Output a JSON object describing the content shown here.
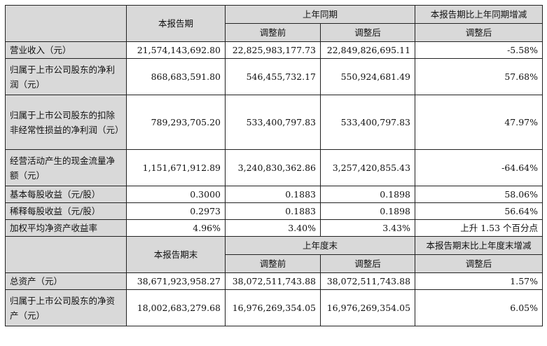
{
  "section1": {
    "col_current": "本报告期",
    "col_prior_group": "上年同期",
    "col_change_group": "本报告期比上年同期增减",
    "sub_before": "调整前",
    "sub_after": "调整后",
    "sub_change": "调整后"
  },
  "rows1": [
    {
      "label": "营业收入（元）",
      "current": "21,574,143,692.80",
      "before": "22,825,983,177.73",
      "after": "22,849,826,695.11",
      "change": "-5.58%"
    },
    {
      "label": "归属于上市公司股东的净利润（元）",
      "current": "868,683,591.80",
      "before": "546,455,732.17",
      "after": "550,924,681.49",
      "change": "57.68%"
    },
    {
      "label": "归属于上市公司股东的扣除非经常性损益的净利润（元）",
      "current": "789,293,705.20",
      "before": "533,400,797.83",
      "after": "533,400,797.83",
      "change": "47.97%"
    },
    {
      "label": "经营活动产生的现金流量净额（元）",
      "current": "1,151,671,912.89",
      "before": "3,240,830,362.86",
      "after": "3,257,420,855.43",
      "change": "-64.64%"
    },
    {
      "label": "基本每股收益（元/股）",
      "current": "0.3000",
      "before": "0.1883",
      "after": "0.1898",
      "change": "58.06%"
    },
    {
      "label": "稀释每股收益（元/股）",
      "current": "0.2973",
      "before": "0.1883",
      "after": "0.1898",
      "change": "56.64%"
    },
    {
      "label": "加权平均净资产收益率",
      "current": "4.96%",
      "before": "3.40%",
      "after": "3.43%",
      "change": "上升 1.53 个百分点"
    }
  ],
  "section2": {
    "col_current": "本报告期末",
    "col_prior_group": "上年度末",
    "col_change_group": "本报告期末比上年度末增减",
    "sub_before": "调整前",
    "sub_after": "调整后",
    "sub_change": "调整后"
  },
  "rows2": [
    {
      "label": "总资产（元）",
      "current": "38,671,923,958.27",
      "before": "38,072,511,743.88",
      "after": "38,072,511,743.88",
      "change": "1.57%"
    },
    {
      "label": "归属于上市公司股东的净资产（元）",
      "current": "18,002,683,279.68",
      "before": "16,976,269,354.05",
      "after": "16,976,269,354.05",
      "change": "6.05%"
    }
  ]
}
